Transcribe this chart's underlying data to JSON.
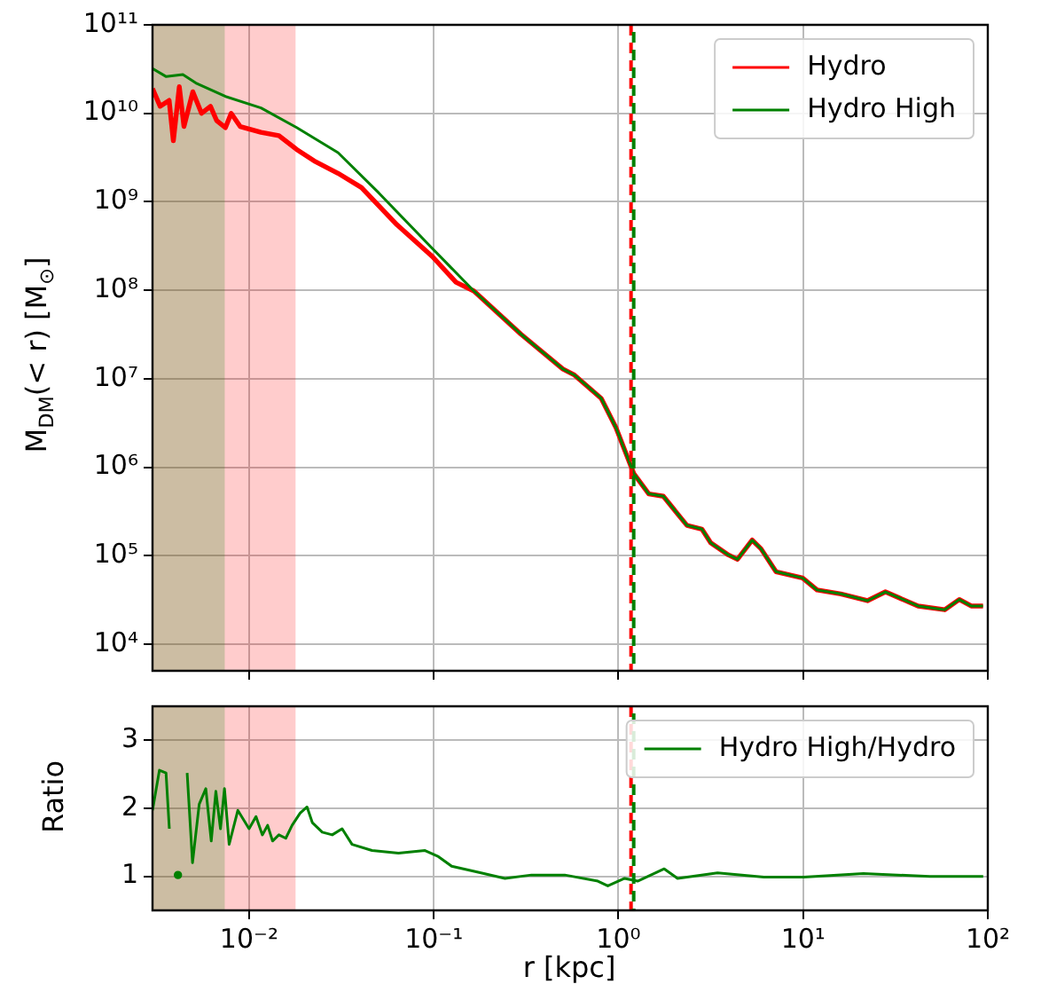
{
  "chart_data": [
    {
      "type": "line",
      "ylabel": "M$_{DM}$(< r) [M$_{⊙}$]",
      "log": "xy",
      "grid": true,
      "legend": "top right",
      "tick_labels": "y",
      "xlim": [
        0.003,
        100
      ],
      "xticks": [
        {
          "value": 0.01,
          "label": null
        },
        {
          "value": 0.1,
          "label": null
        },
        {
          "value": 1,
          "label": null
        },
        {
          "value": 10,
          "label": null
        },
        {
          "value": 100,
          "label": null
        }
      ],
      "ylim": [
        5000,
        100000000000.0
      ],
      "yticks": [
        {
          "value": 10000,
          "label": "10⁴"
        },
        {
          "value": 100000,
          "label": "10⁵"
        },
        {
          "value": 1000000,
          "label": "10⁶"
        },
        {
          "value": 10000000,
          "label": "10⁷"
        },
        {
          "value": 100000000,
          "label": "10⁸"
        },
        {
          "value": 1000000000,
          "label": "10⁹"
        },
        {
          "value": 10000000000,
          "label": "10¹⁰"
        },
        {
          "value": 100000000000,
          "label": "10¹¹"
        }
      ],
      "series": [
        {
          "name": "Hydro",
          "color": "#ff0000",
          "x": [
            0.003,
            0.0033,
            0.00369,
            0.00389,
            0.00419,
            0.00444,
            0.00496,
            0.00553,
            0.00618,
            0.00667,
            0.00745,
            0.008,
            0.00895,
            0.0116,
            0.0145,
            0.0181,
            0.0225,
            0.0303,
            0.0406,
            0.0632,
            0.0984,
            0.132,
            0.165,
            0.296,
            0.5,
            0.578,
            0.807,
            0.97,
            1.21,
            1.46,
            1.75,
            2.35,
            2.83,
            3.16,
            3.94,
            4.41,
            5.3,
            5.91,
            7.13,
            9.93,
            11.9,
            16.0,
            22.3,
            27.9,
            41.9,
            58.4,
            70.1,
            81.3,
            94.2
          ],
          "values": [
            19000000000.0,
            12000000000.0,
            14000000000.0,
            4900000000.0,
            20000000000.0,
            7100000000.0,
            17500000000.0,
            10000000000.0,
            12000000000.0,
            8300000000.0,
            6900000000.0,
            10000000000.0,
            7100000000.0,
            6100000000.0,
            5600000000.0,
            3900000000.0,
            2900000000.0,
            2100000000.0,
            1450000000.0,
            550000000.0,
            240000000.0,
            123000000.0,
            98000000.0,
            32000000.0,
            12900000.0,
            11000000.0,
            6000000.0,
            2800000.0,
            850000.0,
            500000.0,
            470000.0,
            220000.0,
            200000.0,
            140000.0,
            102000.0,
            91000.0,
            150000.0,
            120000.0,
            66000.0,
            56000.0,
            41000.0,
            37000.0,
            31000.0,
            39000.0,
            27000.0,
            24500.0,
            32000.0,
            27000.0,
            27000.0
          ]
        },
        {
          "name": "Hydro High",
          "color": "#008000",
          "x": [
            0.003,
            0.00356,
            0.00438,
            0.00515,
            0.00745,
            0.0116,
            0.0181,
            0.0303,
            0.0504,
            0.0977,
            0.165,
            0.296,
            0.5,
            0.578,
            0.807,
            0.97,
            1.21,
            1.46,
            1.75,
            2.35,
            2.83,
            3.16,
            3.94,
            4.41,
            5.3,
            5.91,
            7.13,
            9.93,
            11.9,
            16.0,
            22.3,
            27.9,
            41.9,
            58.4,
            70.1,
            81.3,
            94.2
          ],
          "values": [
            32000000000.0,
            26000000000.0,
            27500000000.0,
            22000000000.0,
            15500000000.0,
            11500000000.0,
            6900000000.0,
            3600000000.0,
            1260000000.0,
            300000000.0,
            98000000.0,
            32000000.0,
            12900000.0,
            11000000.0,
            6000000.0,
            2800000.0,
            850000.0,
            500000.0,
            470000.0,
            220000.0,
            200000.0,
            140000.0,
            102000.0,
            91000.0,
            150000.0,
            120000.0,
            66000.0,
            56000.0,
            41000.0,
            37000.0,
            31000.0,
            39000.0,
            27000.0,
            24500.0,
            32000.0,
            27000.0,
            27000.0
          ]
        }
      ],
      "bands": [
        {
          "axis": "x",
          "from": 0.003,
          "to": 0.0179,
          "color": "#ff0000"
        },
        {
          "axis": "x",
          "from": 0.003,
          "to": 0.0074,
          "color": "#008000"
        }
      ],
      "ref_lines": [
        {
          "axis": "x",
          "value": 1.17,
          "color": "#ff0000",
          "line_style": "dashed"
        },
        {
          "axis": "x",
          "value": 1.17,
          "color": "#008000",
          "line_style": "dashed"
        }
      ]
    },
    {
      "type": "line",
      "xlabel": "r [kpc]",
      "ylabel": "Ratio",
      "log": "x",
      "grid": true,
      "legend": "top right",
      "xlim": [
        0.003,
        100
      ],
      "xticks": [
        {
          "value": 0.01,
          "label": "10⁻²"
        },
        {
          "value": 0.1,
          "label": "10⁻¹"
        },
        {
          "value": 1,
          "label": "10⁰"
        },
        {
          "value": 10,
          "label": "10¹"
        },
        {
          "value": 100,
          "label": "10²"
        }
      ],
      "ylim": [
        0.5,
        3.5
      ],
      "yticks": [
        1,
        2,
        3
      ],
      "series": [
        {
          "name": "Hydro High/Hydro",
          "color": "#008000",
          "x": [
            0.003,
            0.00327,
            0.00355,
            0.0037,
            0.00385,
            0.00412,
            0.00437,
            0.00462,
            0.00494,
            0.00537,
            0.00583,
            0.00624,
            0.00661,
            0.007,
            0.00736,
            0.0078,
            0.00869,
            0.01,
            0.0109,
            0.0118,
            0.0126,
            0.0134,
            0.0145,
            0.0158,
            0.0171,
            0.0189,
            0.0206,
            0.022,
            0.0249,
            0.0282,
            0.0319,
            0.0361,
            0.0463,
            0.0644,
            0.0897,
            0.106,
            0.125,
            0.174,
            0.243,
            0.338,
            0.512,
            0.774,
            0.876,
            1.08,
            1.27,
            1.77,
            2.09,
            3.44,
            6.13,
            10.1,
            21.2,
            48.6,
            94.4
          ],
          "values": [
            1.97,
            2.56,
            2.52,
            1.7,
            null,
            1.02,
            null,
            2.52,
            1.2,
            2.06,
            2.29,
            1.52,
            2.25,
            1.7,
            2.29,
            1.47,
            1.97,
            1.7,
            1.88,
            1.61,
            1.75,
            1.52,
            1.61,
            1.56,
            1.75,
            1.93,
            2.02,
            1.79,
            1.65,
            1.61,
            1.7,
            1.47,
            1.38,
            1.34,
            1.38,
            1.29,
            1.15,
            1.06,
            0.97,
            1.02,
            1.02,
            0.93,
            0.86,
            0.97,
            0.93,
            1.11,
            0.97,
            1.05,
            0.99,
            0.99,
            1.04,
            1.0,
            1.0
          ]
        }
      ],
      "bands": [
        {
          "axis": "x",
          "from": 0.003,
          "to": 0.0179,
          "color": "#ff0000"
        },
        {
          "axis": "x",
          "from": 0.003,
          "to": 0.0074,
          "color": "#008000"
        }
      ],
      "ref_lines": [
        {
          "axis": "x",
          "value": 1.17,
          "color": "#ff0000",
          "line_style": "dashed"
        },
        {
          "axis": "x",
          "value": 1.17,
          "color": "#008000",
          "line_style": "dashed"
        }
      ]
    }
  ]
}
